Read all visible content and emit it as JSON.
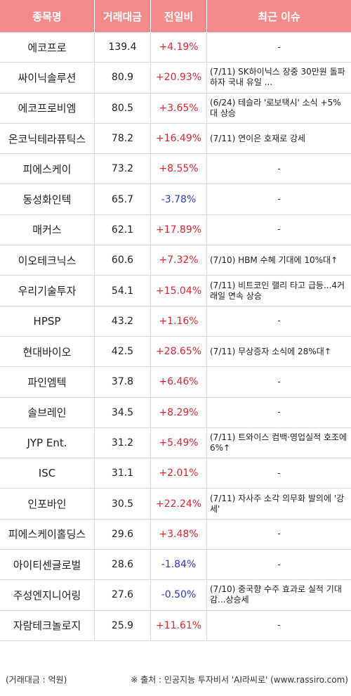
{
  "header": {
    "name": "종목명",
    "volume": "거래대금",
    "change": "전일비",
    "issue": "최근 이슈"
  },
  "rows": [
    {
      "name": "에코프로",
      "volume": "139.4",
      "change": "+4.19%",
      "dir": "up",
      "issue": "-"
    },
    {
      "name": "싸이닉솔루션",
      "volume": "80.9",
      "change": "+20.93%",
      "dir": "up",
      "issue": "(7/11) SK하이닉스 장중 30만원 돌파하자 국내 유일 ..."
    },
    {
      "name": "에코프로비엠",
      "volume": "80.5",
      "change": "+3.65%",
      "dir": "up",
      "issue": "(6/24) 테슬라 '로보택시' 소식 +5%대 상승"
    },
    {
      "name": "온코닉테라퓨틱스",
      "volume": "78.2",
      "change": "+16.49%",
      "dir": "up",
      "issue": "(7/11) 연이은 호재로 강세"
    },
    {
      "name": "피에스케이",
      "volume": "73.2",
      "change": "+8.55%",
      "dir": "up",
      "issue": "-"
    },
    {
      "name": "동성화인텍",
      "volume": "65.7",
      "change": "-3.78%",
      "dir": "down",
      "issue": "-"
    },
    {
      "name": "매커스",
      "volume": "62.1",
      "change": "+17.89%",
      "dir": "up",
      "issue": "-"
    },
    {
      "name": "이오테크닉스",
      "volume": "60.6",
      "change": "+7.32%",
      "dir": "up",
      "issue": "(7/10) HBM 수혜 기대에 10%대↑"
    },
    {
      "name": "우리기술투자",
      "volume": "54.1",
      "change": "+15.04%",
      "dir": "up",
      "issue": "(7/11) 비트코인 랠리 타고 급등...4거래일 연속 상승"
    },
    {
      "name": "HPSP",
      "volume": "43.2",
      "change": "+1.16%",
      "dir": "up",
      "issue": "-"
    },
    {
      "name": "현대바이오",
      "volume": "42.5",
      "change": "+28.65%",
      "dir": "up",
      "issue": "(7/11) 무상증자 소식에 28%대↑"
    },
    {
      "name": "파인엠텍",
      "volume": "37.8",
      "change": "+6.46%",
      "dir": "up",
      "issue": "-"
    },
    {
      "name": "솔브레인",
      "volume": "34.5",
      "change": "+8.29%",
      "dir": "up",
      "issue": "-"
    },
    {
      "name": "JYP Ent.",
      "volume": "31.2",
      "change": "+5.49%",
      "dir": "up",
      "issue": "(7/11) 트와이스 컴백·영업실적 호조에 6%↑"
    },
    {
      "name": "ISC",
      "volume": "31.1",
      "change": "+2.01%",
      "dir": "up",
      "issue": "-"
    },
    {
      "name": "인포바인",
      "volume": "30.5",
      "change": "+22.24%",
      "dir": "up",
      "issue": "(7/11) 자사주 소각 의무화 발의에 '강세'"
    },
    {
      "name": "피에스케이홀딩스",
      "volume": "29.6",
      "change": "+3.48%",
      "dir": "up",
      "issue": "-"
    },
    {
      "name": "아이티센글로벌",
      "volume": "28.6",
      "change": "-1.84%",
      "dir": "down",
      "issue": "-"
    },
    {
      "name": "주성엔지니어링",
      "volume": "27.6",
      "change": "-0.50%",
      "dir": "down",
      "issue": "(7/10) 중국향 수주 효과로 실적 기대감...상승세"
    },
    {
      "name": "자람테크놀로지",
      "volume": "25.9",
      "change": "+11.61%",
      "dir": "up",
      "issue": "-"
    }
  ],
  "footer": {
    "unit": "(거래대금 : 억원)",
    "source": "※ 출처 : 인공지능 투자비서 'AI라씨로' (www.rassiro.com)"
  },
  "colors": {
    "header_bg": "#f58a8a",
    "up": "#e0262f",
    "down": "#2b3bbf"
  }
}
